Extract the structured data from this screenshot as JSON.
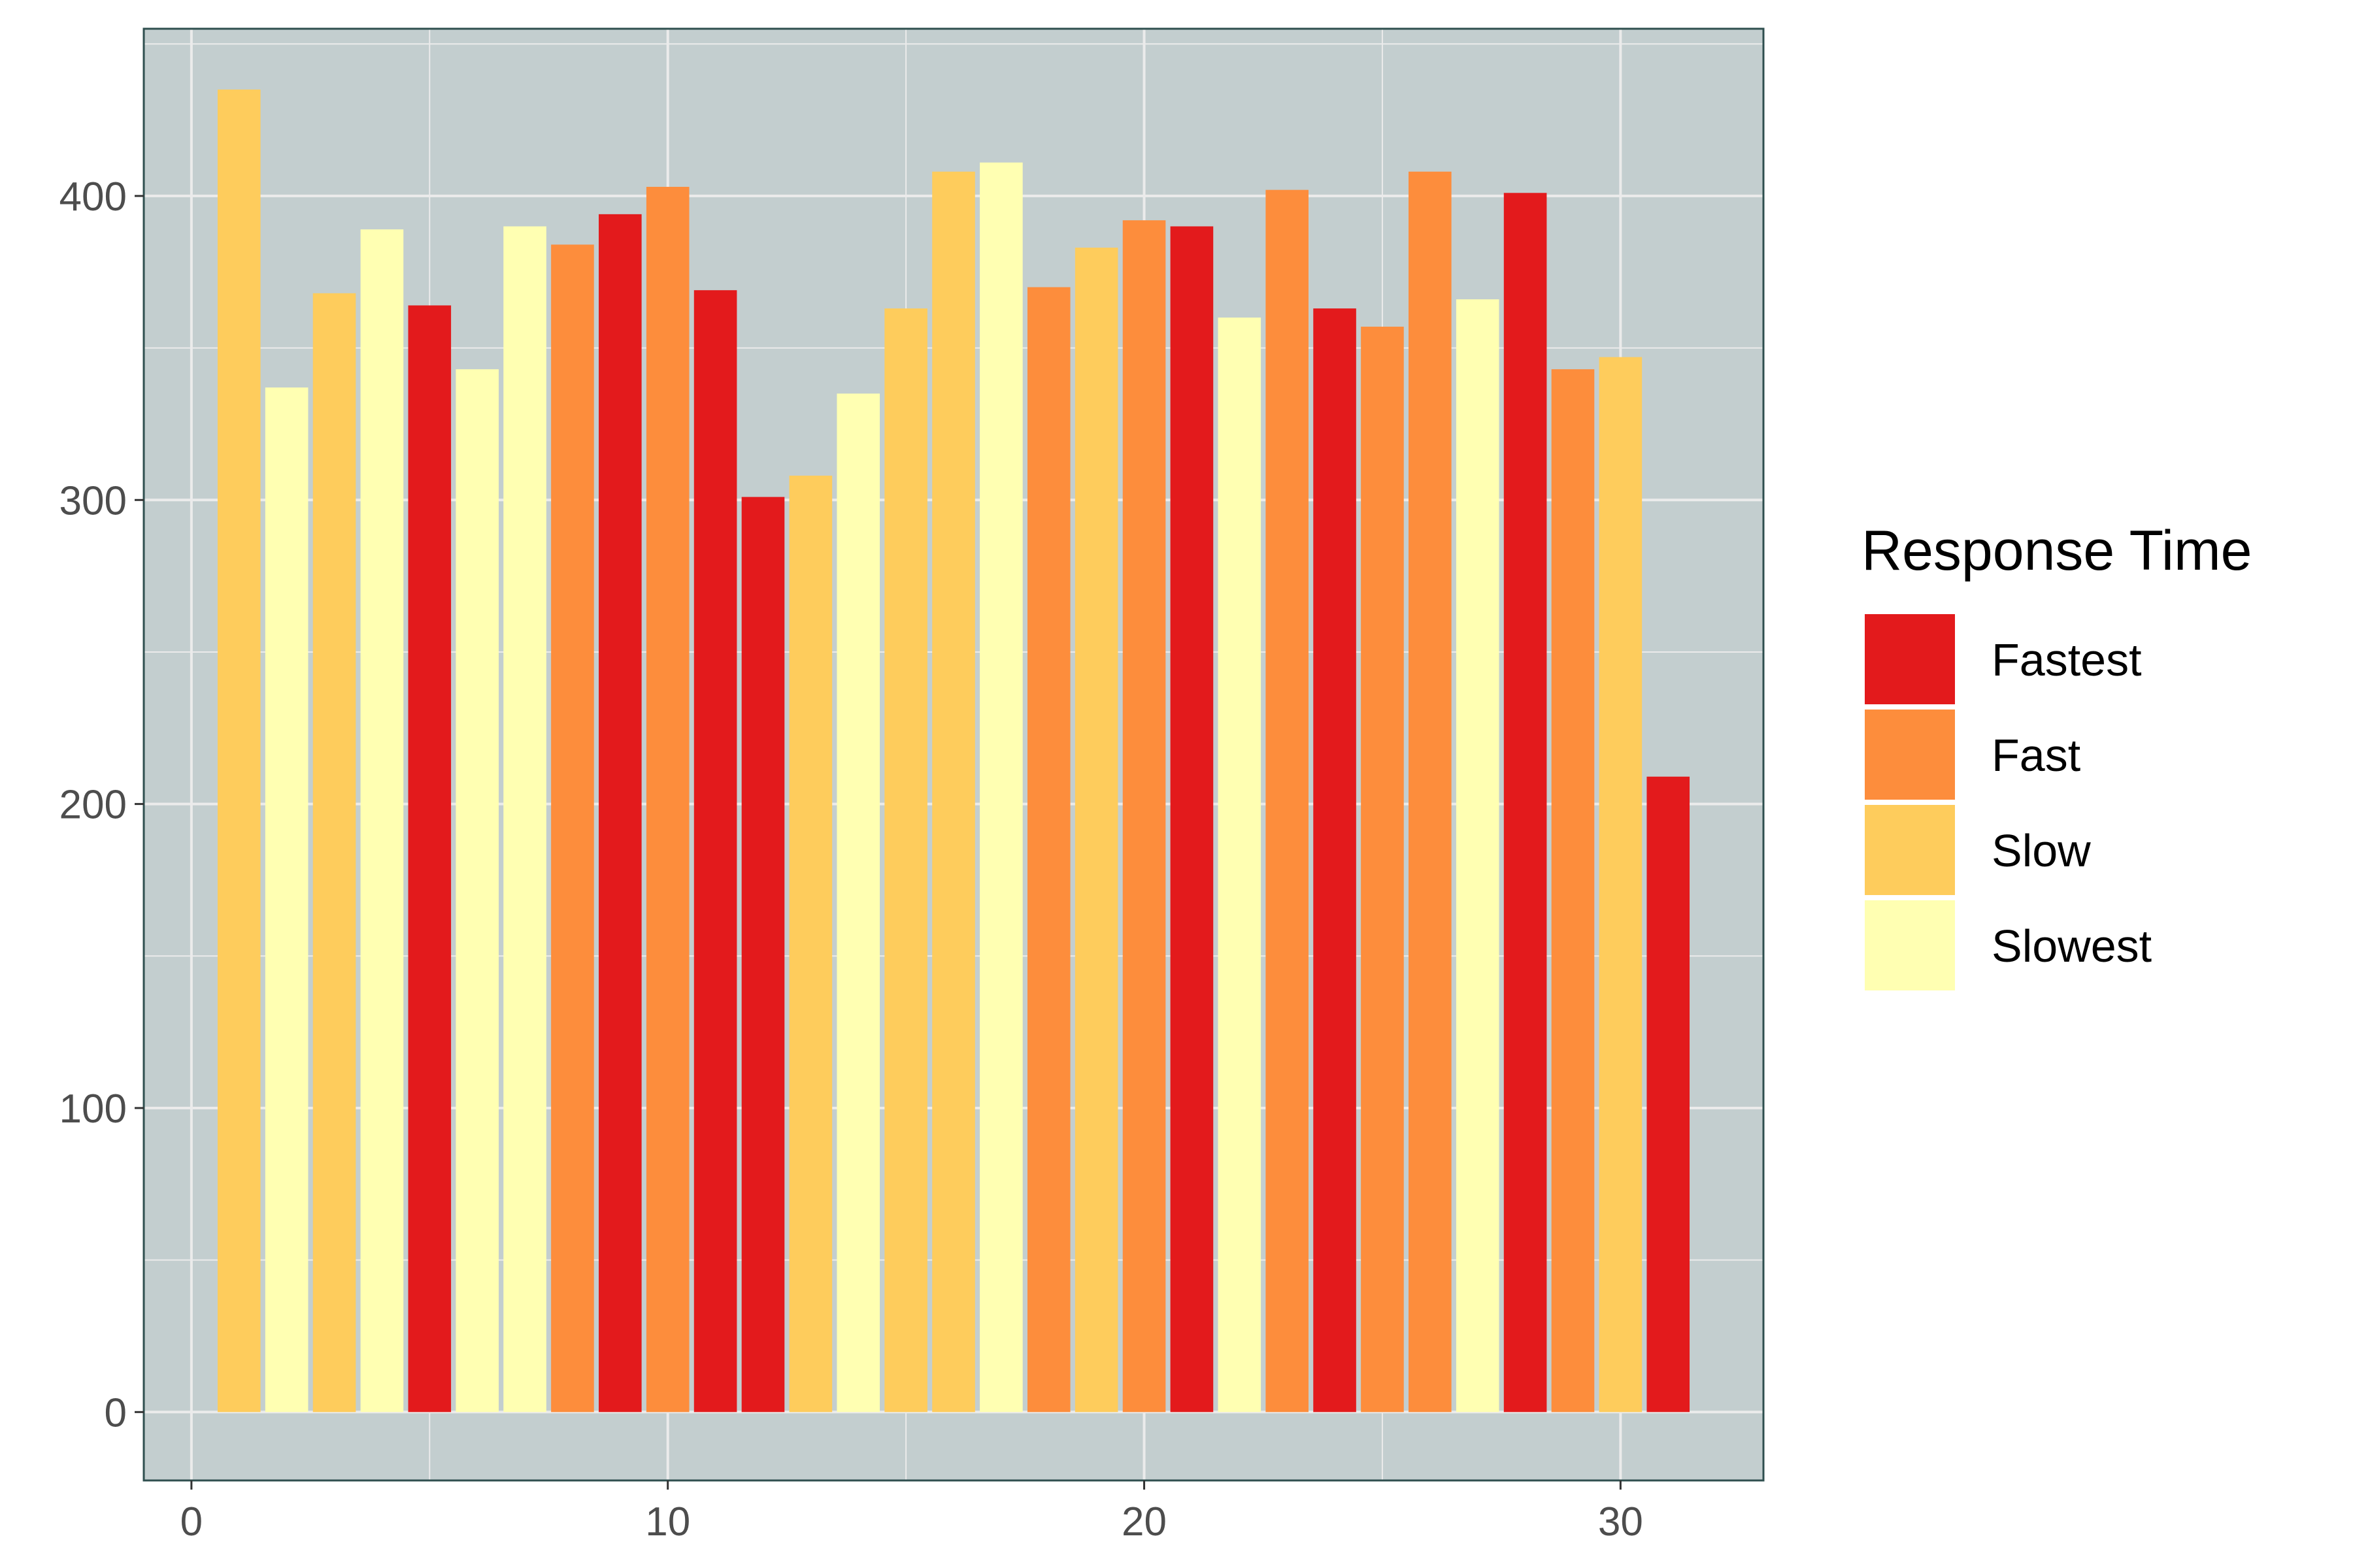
{
  "chart_data": {
    "type": "bar",
    "title": "",
    "xlabel": "",
    "ylabel": "",
    "xlim": [
      -1,
      33
    ],
    "ylim": [
      -22.5,
      455
    ],
    "x_ticks": [
      0,
      10,
      20,
      30
    ],
    "y_ticks": [
      0,
      100,
      200,
      300,
      400
    ],
    "grid": true,
    "panel_background": "#c3cecf",
    "legend": {
      "title": "Response Time",
      "placement": "right",
      "entries": [
        {
          "label": "Fastest",
          "color": "#e31a1c"
        },
        {
          "label": "Fast",
          "color": "#fd8d3c"
        },
        {
          "label": "Slow",
          "color": "#fecc5c"
        },
        {
          "label": "Slowest",
          "color": "#ffffb2"
        }
      ]
    },
    "bars": [
      {
        "x": 1,
        "value": 435,
        "group": "Slow"
      },
      {
        "x": 2,
        "value": 337,
        "group": "Slowest"
      },
      {
        "x": 3,
        "value": 368,
        "group": "Slow"
      },
      {
        "x": 4,
        "value": 389,
        "group": "Slowest"
      },
      {
        "x": 5,
        "value": 364,
        "group": "Fastest"
      },
      {
        "x": 6,
        "value": 343,
        "group": "Slowest"
      },
      {
        "x": 7,
        "value": 390,
        "group": "Slowest"
      },
      {
        "x": 8,
        "value": 384,
        "group": "Fast"
      },
      {
        "x": 9,
        "value": 394,
        "group": "Fastest"
      },
      {
        "x": 10,
        "value": 403,
        "group": "Fast"
      },
      {
        "x": 11,
        "value": 369,
        "group": "Fastest"
      },
      {
        "x": 12,
        "value": 301,
        "group": "Fastest"
      },
      {
        "x": 13,
        "value": 308,
        "group": "Slow"
      },
      {
        "x": 14,
        "value": 335,
        "group": "Slowest"
      },
      {
        "x": 15,
        "value": 363,
        "group": "Slow"
      },
      {
        "x": 16,
        "value": 408,
        "group": "Slow"
      },
      {
        "x": 17,
        "value": 411,
        "group": "Slowest"
      },
      {
        "x": 18,
        "value": 370,
        "group": "Fast"
      },
      {
        "x": 19,
        "value": 383,
        "group": "Slow"
      },
      {
        "x": 20,
        "value": 392,
        "group": "Fast"
      },
      {
        "x": 21,
        "value": 390,
        "group": "Fastest"
      },
      {
        "x": 22,
        "value": 360,
        "group": "Slowest"
      },
      {
        "x": 23,
        "value": 402,
        "group": "Fast"
      },
      {
        "x": 24,
        "value": 363,
        "group": "Fastest"
      },
      {
        "x": 25,
        "value": 357,
        "group": "Fast"
      },
      {
        "x": 26,
        "value": 408,
        "group": "Fast"
      },
      {
        "x": 27,
        "value": 366,
        "group": "Slowest"
      },
      {
        "x": 28,
        "value": 401,
        "group": "Fastest"
      },
      {
        "x": 29,
        "value": 343,
        "group": "Fast"
      },
      {
        "x": 30,
        "value": 347,
        "group": "Slow"
      },
      {
        "x": 31,
        "value": 209,
        "group": "Fastest"
      }
    ]
  }
}
